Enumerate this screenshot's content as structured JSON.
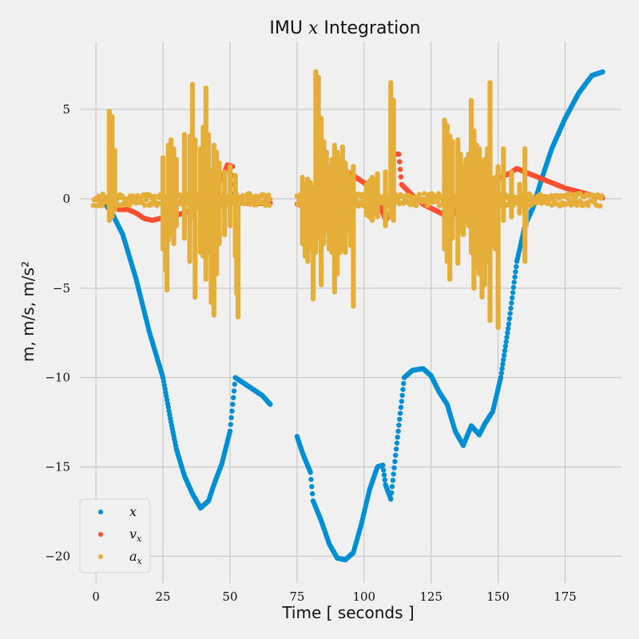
{
  "chart_data": {
    "type": "scatter",
    "title": "IMU x Integration",
    "title_parts": {
      "pre": "IMU ",
      "var": "x",
      "post": " Integration"
    },
    "xlabel": "Time [ seconds ]",
    "ylabel": "m, m/s, m/s²",
    "xlim": [
      -6,
      196
    ],
    "ylim": [
      -21.5,
      8.8
    ],
    "xticks": [
      0,
      25,
      50,
      75,
      100,
      125,
      150,
      175
    ],
    "yticks": [
      5,
      0,
      -5,
      -10,
      -15,
      -20
    ],
    "xtick_labels": [
      "0",
      "25",
      "50",
      "75",
      "100",
      "125",
      "150",
      "175"
    ],
    "ytick_labels": [
      "5",
      "0",
      "−5",
      "−10",
      "−15",
      "−20"
    ],
    "grid": true,
    "legend_position": "lower-left",
    "background": "#f0f0f0",
    "series": [
      {
        "name": "x",
        "color": "#008fd5",
        "segments": [
          [
            [
              0,
              0
            ],
            [
              3,
              -0.2
            ],
            [
              6,
              -0.8
            ],
            [
              10,
              -2
            ],
            [
              15,
              -4.5
            ],
            [
              20,
              -7.5
            ],
            [
              25,
              -10
            ],
            [
              28,
              -12.5
            ],
            [
              30,
              -14
            ],
            [
              33,
              -15.5
            ],
            [
              36,
              -16.5
            ],
            [
              39,
              -17.3
            ],
            [
              42,
              -16.9
            ],
            [
              44,
              -16
            ],
            [
              47,
              -14.8
            ],
            [
              50,
              -13
            ],
            [
              52,
              -10
            ],
            [
              54,
              -10.2
            ],
            [
              58,
              -10.6
            ],
            [
              62,
              -11
            ],
            [
              65,
              -11.5
            ]
          ],
          [
            [
              75,
              -13.3
            ],
            [
              77,
              -14.2
            ],
            [
              80,
              -15.3
            ],
            [
              81,
              -16.9
            ],
            [
              84,
              -18
            ],
            [
              87,
              -19.3
            ],
            [
              90,
              -20.1
            ],
            [
              93,
              -20.2
            ],
            [
              96,
              -19.8
            ],
            [
              99,
              -18.2
            ],
            [
              102,
              -16.3
            ],
            [
              105,
              -15
            ],
            [
              107,
              -14.9
            ],
            [
              108,
              -16
            ],
            [
              110,
              -16.8
            ],
            [
              112,
              -14
            ],
            [
              115,
              -10
            ],
            [
              118,
              -9.6
            ],
            [
              122,
              -9.5
            ],
            [
              125,
              -9.9
            ],
            [
              128,
              -10.8
            ],
            [
              131,
              -11.5
            ],
            [
              134,
              -13
            ],
            [
              137,
              -13.8
            ],
            [
              140,
              -12.7
            ],
            [
              143,
              -13.2
            ],
            [
              145,
              -12.6
            ],
            [
              148,
              -11.9
            ],
            [
              151,
              -10
            ],
            [
              154,
              -7
            ],
            [
              157,
              -3.5
            ],
            [
              160,
              -1.5
            ],
            [
              163,
              -0.5
            ],
            [
              166,
              1
            ],
            [
              170,
              2.8
            ],
            [
              175,
              4.5
            ],
            [
              180,
              5.9
            ],
            [
              185,
              6.9
            ],
            [
              189,
              7.1
            ]
          ]
        ]
      },
      {
        "name": "v_x",
        "color": "#fc4f30",
        "segments": [
          [
            [
              0,
              0
            ],
            [
              3,
              -0.05
            ],
            [
              6,
              -0.5
            ],
            [
              9,
              -0.6
            ],
            [
              12,
              -0.6
            ],
            [
              15,
              -0.8
            ],
            [
              18,
              -1.1
            ],
            [
              21,
              -1.2
            ],
            [
              24,
              -1.1
            ],
            [
              27,
              -1.0
            ],
            [
              30,
              -0.9
            ],
            [
              33,
              -0.8
            ],
            [
              36,
              -0.6
            ],
            [
              39,
              -0.3
            ],
            [
              41,
              0.1
            ],
            [
              43,
              1.0
            ],
            [
              45,
              1.4
            ],
            [
              47,
              1.1
            ],
            [
              49,
              1.9
            ],
            [
              51,
              1.8
            ],
            [
              52,
              -0.2
            ],
            [
              56,
              -0.25
            ],
            [
              60,
              -0.25
            ],
            [
              65,
              -0.25
            ]
          ],
          [
            [
              75,
              -0.3
            ],
            [
              78,
              -0.4
            ],
            [
              80,
              -1.2
            ],
            [
              81,
              -1.9
            ],
            [
              82,
              -2.1
            ],
            [
              84,
              -1.6
            ],
            [
              86,
              -0.9
            ],
            [
              88,
              -0.2
            ],
            [
              90,
              1.6
            ],
            [
              93,
              1.6
            ],
            [
              96,
              1.3
            ],
            [
              100,
              0.9
            ],
            [
              104,
              0.5
            ],
            [
              107,
              -0.8
            ],
            [
              108,
              -1.2
            ],
            [
              110,
              -0.8
            ],
            [
              111,
              2.5
            ],
            [
              113,
              2.5
            ],
            [
              114,
              0.8
            ],
            [
              118,
              0.2
            ],
            [
              122,
              -0.3
            ],
            [
              126,
              -0.6
            ],
            [
              130,
              -0.9
            ],
            [
              133,
              -1.0
            ],
            [
              135,
              -0.2
            ],
            [
              137,
              1.2
            ],
            [
              139,
              1.4
            ],
            [
              141,
              1.6
            ],
            [
              143,
              0.2
            ],
            [
              145,
              0.8
            ],
            [
              148,
              1.1
            ],
            [
              151,
              1.2
            ],
            [
              154,
              1.4
            ],
            [
              157,
              1.7
            ],
            [
              160,
              1.5
            ],
            [
              165,
              1.2
            ],
            [
              170,
              0.9
            ],
            [
              175,
              0.6
            ],
            [
              180,
              0.4
            ],
            [
              185,
              0.2
            ],
            [
              189,
              0.05
            ]
          ]
        ]
      },
      {
        "name": "a_x",
        "color": "#e5ae38",
        "baseline": [
          [
            -1,
            65
          ],
          [
            75,
            189
          ]
        ],
        "spikes": [
          [
            5,
            4.9,
            -1.2
          ],
          [
            6,
            4.6,
            -1.0
          ],
          [
            7,
            2.7,
            -0.6
          ],
          [
            25,
            2.3,
            -2.8
          ],
          [
            26,
            -4.0
          ],
          [
            26.5,
            -5.1
          ],
          [
            27,
            3.0,
            -2.3
          ],
          [
            28,
            3.3,
            -2.0
          ],
          [
            29,
            2.8,
            -2.5
          ],
          [
            30,
            2.2,
            -1.5
          ],
          [
            33,
            3.6,
            -2.2
          ],
          [
            35,
            3.5,
            -3.5
          ],
          [
            36,
            6.4,
            -1.0
          ],
          [
            37,
            3.3,
            -5.5
          ],
          [
            39,
            2.8,
            -3.0
          ],
          [
            40,
            4.0,
            -3.2
          ],
          [
            41,
            6.2,
            -4.5
          ],
          [
            42,
            3.6,
            -3.0
          ],
          [
            43,
            1.6,
            -5.8
          ],
          [
            44,
            3.0,
            -6.5
          ],
          [
            45,
            2.6,
            -4.2
          ],
          [
            46,
            2.0,
            -2.5
          ],
          [
            48,
            1.5,
            -2.0
          ],
          [
            50,
            1.8,
            -1.5
          ],
          [
            52,
            1.3,
            -3.2
          ],
          [
            52.5,
            -5.3
          ],
          [
            53,
            -6.6
          ],
          [
            77,
            1.2,
            -2.5
          ],
          [
            78,
            0.8,
            -3.2
          ],
          [
            79,
            1.1,
            -3.5
          ],
          [
            80,
            0.9,
            -2.8
          ],
          [
            81,
            0.6,
            -5.6
          ],
          [
            82,
            7.1,
            -3.0
          ],
          [
            83,
            6.8,
            -2.2
          ],
          [
            84,
            4.5,
            -4.8
          ],
          [
            85,
            3.2,
            -2.5
          ],
          [
            86,
            2.6,
            -1.8
          ],
          [
            87,
            1.8,
            -2.8
          ],
          [
            88,
            2.2,
            -3.0
          ],
          [
            89,
            3.0,
            -5.2
          ],
          [
            90,
            2.6,
            -4.2
          ],
          [
            91,
            2.3,
            -3.0
          ],
          [
            92,
            2.9,
            -2.8
          ],
          [
            93,
            2.0,
            -3.0
          ],
          [
            94,
            1.5,
            -1.8
          ],
          [
            95,
            1.2,
            -2.6
          ],
          [
            96,
            1.8,
            -6.0
          ],
          [
            101,
            0.8,
            -0.9
          ],
          [
            102,
            1.0,
            -1.0
          ],
          [
            103,
            1.2,
            -1.2
          ],
          [
            104,
            1.0,
            -0.8
          ],
          [
            105,
            1.4,
            -1.0
          ],
          [
            108,
            1.5,
            -1.5
          ],
          [
            110,
            6.5,
            -1.0
          ],
          [
            111,
            5.5,
            -1.2
          ],
          [
            130,
            4.4,
            -2.8
          ],
          [
            131,
            4.1,
            -3.5
          ],
          [
            132,
            3.5,
            -4.5
          ],
          [
            133,
            3.2,
            -2.2
          ],
          [
            135,
            3.3,
            -3.6
          ],
          [
            136,
            2.5,
            -1.8
          ],
          [
            137,
            1.8,
            -2.0
          ],
          [
            138,
            2.2,
            -1.2
          ],
          [
            139,
            2.5,
            -1.5
          ],
          [
            140,
            5.5,
            -3.0
          ],
          [
            141,
            3.8,
            -5.0
          ],
          [
            142,
            3.0,
            -3.8
          ],
          [
            143,
            2.8,
            -4.2
          ],
          [
            144,
            2.0,
            -5.5
          ],
          [
            145,
            2.2,
            -4.8
          ],
          [
            146,
            2.8,
            -3.5
          ],
          [
            147,
            6.5,
            -6.8
          ],
          [
            148,
            1.0,
            -2.6
          ],
          [
            149,
            1.2,
            -2.8
          ],
          [
            150,
            1.8,
            -7.2
          ],
          [
            152,
            2.8,
            -1.2
          ],
          [
            155,
            1.5,
            -1.0
          ],
          [
            158,
            0.8,
            -0.8
          ],
          [
            160,
            2.8,
            -3.5
          ],
          [
            160.5,
            -1.5
          ]
        ]
      }
    ]
  },
  "legend": {
    "entries": [
      {
        "main": "x",
        "sub": ""
      },
      {
        "main": "v",
        "sub": "x"
      },
      {
        "main": "a",
        "sub": "x"
      }
    ]
  }
}
